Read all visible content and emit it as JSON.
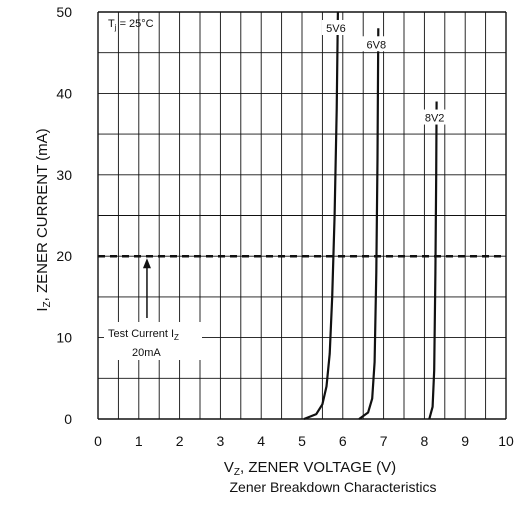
{
  "chart_data": {
    "type": "line",
    "title": "",
    "caption": "Zener Breakdown Characteristics",
    "xlabel": {
      "main": "V",
      "sub": "Z",
      "rest": ", ZENER VOLTAGE (V)"
    },
    "ylabel": {
      "main": "I",
      "sub": "Z",
      "rest": ", ZENER CURRENT (mA)"
    },
    "xlim": [
      0,
      10
    ],
    "ylim": [
      0,
      50
    ],
    "xticks": [
      0,
      1,
      2,
      3,
      4,
      5,
      6,
      7,
      8,
      9,
      10
    ],
    "yticks": [
      0,
      10,
      20,
      30,
      40,
      50
    ],
    "grid": true,
    "condition": {
      "main": "T",
      "sub": "j",
      "rest": " = 25°C"
    },
    "series": [
      {
        "name": "5V6",
        "points": [
          [
            5.05,
            0
          ],
          [
            5.35,
            0.6
          ],
          [
            5.5,
            1.8
          ],
          [
            5.6,
            4
          ],
          [
            5.68,
            8
          ],
          [
            5.74,
            15
          ],
          [
            5.8,
            25
          ],
          [
            5.85,
            38
          ],
          [
            5.88,
            50
          ]
        ]
      },
      {
        "name": "6V8",
        "points": [
          [
            6.4,
            0
          ],
          [
            6.62,
            0.8
          ],
          [
            6.72,
            2.5
          ],
          [
            6.78,
            7
          ],
          [
            6.82,
            18
          ],
          [
            6.85,
            32
          ],
          [
            6.87,
            48
          ]
        ]
      },
      {
        "name": "8V2",
        "points": [
          [
            8.12,
            0
          ],
          [
            8.2,
            1.5
          ],
          [
            8.24,
            6
          ],
          [
            8.27,
            18
          ],
          [
            8.29,
            30
          ],
          [
            8.3,
            39
          ]
        ]
      }
    ],
    "reference_line": {
      "y": 20,
      "style": "dashed"
    },
    "annotation": {
      "line1_main": "Test Current I",
      "line1_sub": "Z",
      "line2": "20mA",
      "arrow_x": 1.2
    }
  }
}
